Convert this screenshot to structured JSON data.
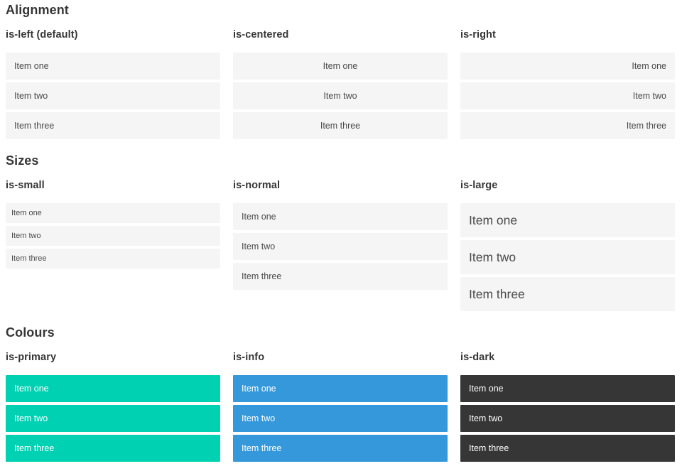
{
  "colors": {
    "primary": "#00d1b2",
    "info": "#3498db",
    "dark": "#363636",
    "item_bg": "#f5f5f5",
    "item_text": "#4a4a4a",
    "heading_text": "#363636",
    "colored_item_text": "#ffffff",
    "page_bg": "#ffffff"
  },
  "sections": [
    {
      "title": "Alignment",
      "columns": [
        {
          "heading": "is-left (default)",
          "variant": "align-left",
          "items": [
            "Item one",
            "Item two",
            "Item three"
          ]
        },
        {
          "heading": "is-centered",
          "variant": "align-center",
          "items": [
            "Item one",
            "Item two",
            "Item three"
          ]
        },
        {
          "heading": "is-right",
          "variant": "align-right",
          "items": [
            "Item one",
            "Item two",
            "Item three"
          ]
        }
      ]
    },
    {
      "title": "Sizes",
      "columns": [
        {
          "heading": "is-small",
          "variant": "size-small",
          "items": [
            "Item one",
            "Item two",
            "Item three"
          ]
        },
        {
          "heading": "is-normal",
          "variant": "size-normal",
          "items": [
            "Item one",
            "Item two",
            "Item three"
          ]
        },
        {
          "heading": "is-large",
          "variant": "size-large",
          "items": [
            "Item one",
            "Item two",
            "Item three"
          ]
        }
      ]
    },
    {
      "title": "Colours",
      "columns": [
        {
          "heading": "is-primary",
          "variant": "color-primary",
          "items": [
            "Item one",
            "Item two",
            "Item three"
          ]
        },
        {
          "heading": "is-info",
          "variant": "color-info",
          "items": [
            "Item one",
            "Item two",
            "Item three"
          ]
        },
        {
          "heading": "is-dark",
          "variant": "color-dark",
          "items": [
            "Item one",
            "Item two",
            "Item three"
          ]
        }
      ]
    }
  ]
}
